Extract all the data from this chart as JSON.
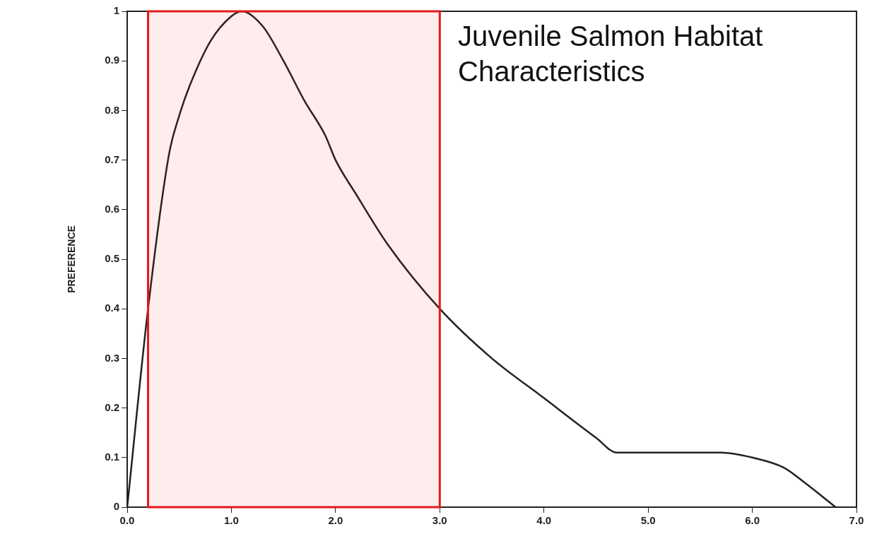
{
  "chart_data": {
    "type": "line",
    "title": "Juvenile Salmon Habitat Characteristics",
    "ylabel": "PREFERENCE",
    "x": [
      0,
      0.2,
      0.4,
      0.5,
      0.6,
      0.8,
      1.0,
      1.1,
      1.3,
      1.5,
      1.7,
      1.9,
      2.0,
      2.2,
      2.5,
      3.0,
      3.5,
      4.0,
      4.5,
      4.7,
      5.0,
      5.7,
      6.0,
      6.3,
      6.5,
      6.8
    ],
    "series": [
      {
        "color": "#222222",
        "values": [
          0,
          0.4,
          0.71,
          0.79,
          0.85,
          0.94,
          0.99,
          1.0,
          0.97,
          0.9,
          0.82,
          0.75,
          0.7,
          0.63,
          0.53,
          0.4,
          0.3,
          0.22,
          0.14,
          0.11,
          0.11,
          0.11,
          0.1,
          0.08,
          0.05,
          0
        ]
      }
    ],
    "xlim": [
      0,
      7
    ],
    "xticks": [
      {
        "value": 0,
        "label": "0.0"
      },
      {
        "value": 1,
        "label": "1.0"
      },
      {
        "value": 2,
        "label": "2.0"
      },
      {
        "value": 3,
        "label": "3.0"
      },
      {
        "value": 4,
        "label": "4.0"
      },
      {
        "value": 5,
        "label": "5.0"
      },
      {
        "value": 6,
        "label": "6.0"
      },
      {
        "value": 7,
        "label": "7.0"
      }
    ],
    "ylim": [
      0,
      1
    ],
    "yticks": [
      0,
      0.1,
      0.2,
      0.3,
      0.4,
      0.5,
      0.6,
      0.7,
      0.8,
      0.9,
      1
    ],
    "bands": [
      {
        "axis": "x",
        "from": 0.2,
        "to": 3.0,
        "color": "#e3191c"
      }
    ],
    "grid": false,
    "legend": false,
    "marker": "none",
    "line_style": "solid"
  }
}
